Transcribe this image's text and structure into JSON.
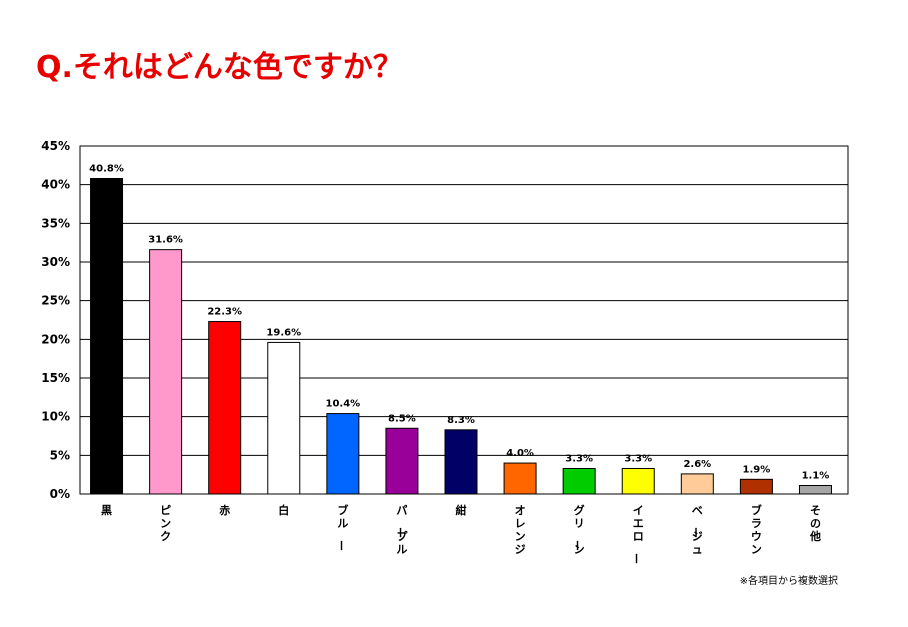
{
  "title": "Q.それはどんな色ですか？",
  "note": "※各項目から複数選択",
  "chart_data": {
    "type": "bar",
    "title": "Q.それはどんな色ですか？",
    "xlabel": "",
    "ylabel": "",
    "ylim": [
      0,
      45
    ],
    "yticks": [
      0,
      5,
      10,
      15,
      20,
      25,
      30,
      35,
      40,
      45
    ],
    "ytick_labels": [
      "0%",
      "5%",
      "10%",
      "15%",
      "20%",
      "25%",
      "30%",
      "35%",
      "40%",
      "45%"
    ],
    "grid": true,
    "legend": "none",
    "categories": [
      "黒",
      "ピンク",
      "赤",
      "白",
      "ブルー",
      "パープル",
      "紺",
      "オレンジ",
      "グリーン",
      "イエロー",
      "ベージュ",
      "ブラウン",
      "その他"
    ],
    "values": [
      40.8,
      31.6,
      22.3,
      19.6,
      10.4,
      8.5,
      8.3,
      4.0,
      3.3,
      3.3,
      2.6,
      1.9,
      1.1
    ],
    "data_labels": [
      "40.8%",
      "31.6%",
      "22.3%",
      "19.6%",
      "10.4%",
      "8.5%",
      "8.3%",
      "4.0%",
      "3.3%",
      "3.3%",
      "2.6%",
      "1.9%",
      "1.1%"
    ],
    "colors": [
      "#000000",
      "#ff99cc",
      "#ff0000",
      "#ffffff",
      "#0066ff",
      "#990099",
      "#000066",
      "#ff6600",
      "#00cc00",
      "#ffff00",
      "#ffcc99",
      "#b03000",
      "#a6a6a6"
    ]
  }
}
